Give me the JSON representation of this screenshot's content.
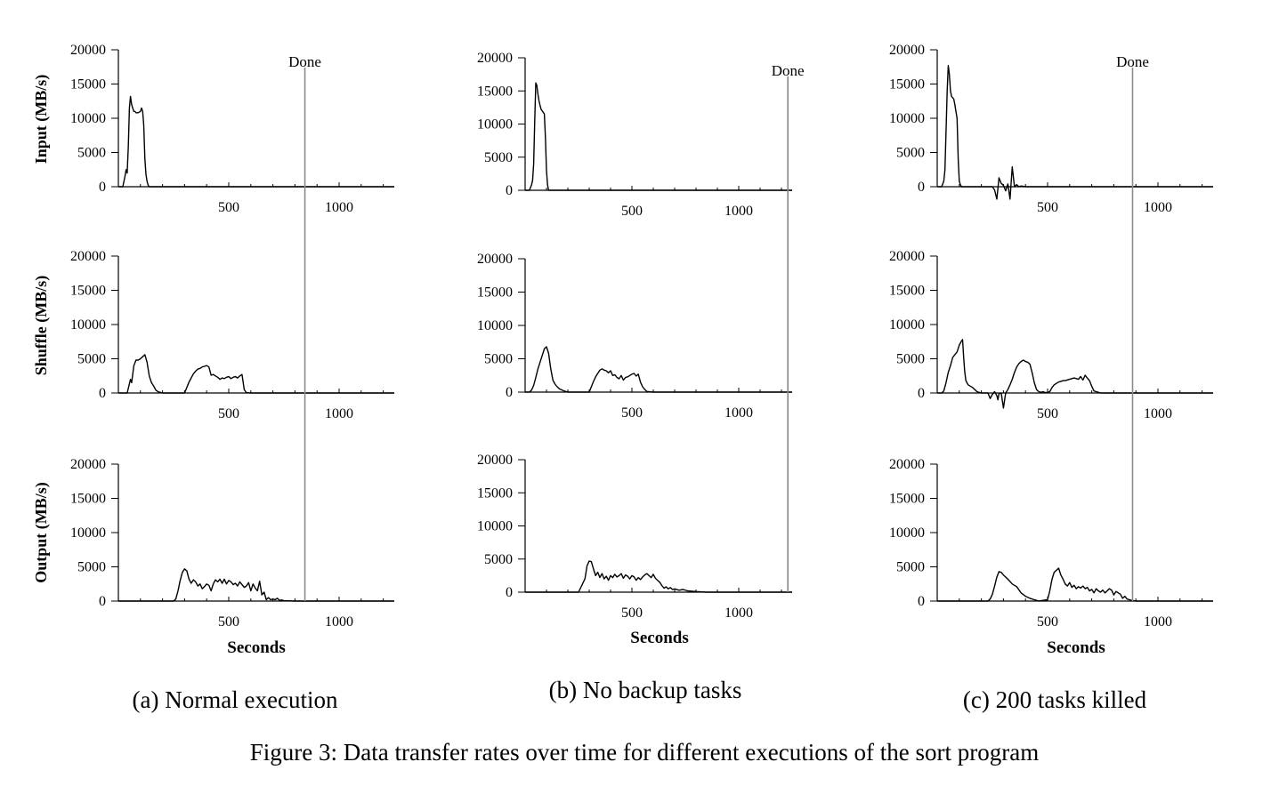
{
  "figure": {
    "caption": "Figure 3: Data transfer rates over time for different executions of the sort program"
  },
  "row_labels": [
    "Input (MB/s)",
    "Shuffle (MB/s)",
    "Output (MB/s)"
  ],
  "chart_data": [
    {
      "type": "line",
      "panel": "(a) Normal execution",
      "xlabel": "Seconds",
      "xlim": [
        0,
        1250
      ],
      "ylim": [
        0,
        20000
      ],
      "xticks": [
        500,
        1000
      ],
      "yticks": [
        0,
        5000,
        10000,
        15000,
        20000
      ],
      "done_label": "Done",
      "done_x": 845,
      "grid": false,
      "series": [
        {
          "row": "Input (MB/s)",
          "x": [
            0,
            20,
            30,
            35,
            40,
            45,
            50,
            55,
            60,
            65,
            70,
            75,
            80,
            90,
            100,
            105,
            110,
            115,
            120,
            125,
            130,
            135,
            140,
            150,
            160,
            170,
            200,
            300,
            500,
            1000,
            1250
          ],
          "y": [
            0,
            0,
            1500,
            2500,
            2000,
            6000,
            11500,
            13200,
            12000,
            11500,
            11000,
            11000,
            10800,
            10800,
            11000,
            11500,
            11000,
            9000,
            4000,
            1800,
            800,
            200,
            0,
            0,
            0,
            0,
            0,
            0,
            0,
            0,
            0
          ]
        },
        {
          "row": "Shuffle (MB/s)",
          "x": [
            0,
            40,
            55,
            60,
            70,
            80,
            90,
            100,
            110,
            120,
            130,
            140,
            150,
            160,
            170,
            180,
            200,
            260,
            300,
            310,
            320,
            330,
            340,
            350,
            360,
            370,
            380,
            390,
            400,
            410,
            420,
            430,
            440,
            450,
            460,
            470,
            480,
            490,
            500,
            510,
            520,
            530,
            540,
            550,
            560,
            570,
            580,
            600,
            800,
            1000,
            1250
          ],
          "y": [
            0,
            0,
            2000,
            1500,
            4000,
            4800,
            4800,
            5000,
            5300,
            5600,
            4500,
            2500,
            1500,
            1000,
            400,
            200,
            0,
            0,
            0,
            800,
            1600,
            2200,
            2800,
            3200,
            3500,
            3600,
            3800,
            3900,
            4000,
            3800,
            2600,
            2700,
            2500,
            2300,
            2000,
            2200,
            2100,
            2300,
            2400,
            2100,
            2300,
            2400,
            2200,
            2500,
            2700,
            500,
            50,
            0,
            0,
            0,
            0
          ]
        },
        {
          "row": "Output (MB/s)",
          "x": [
            0,
            200,
            250,
            260,
            270,
            280,
            290,
            300,
            310,
            320,
            330,
            340,
            350,
            360,
            370,
            380,
            390,
            400,
            410,
            420,
            430,
            440,
            450,
            460,
            470,
            480,
            490,
            500,
            510,
            520,
            530,
            540,
            550,
            560,
            570,
            580,
            590,
            600,
            610,
            620,
            630,
            640,
            650,
            660,
            670,
            680,
            690,
            700,
            710,
            720,
            730,
            740,
            750,
            800,
            1000,
            1250
          ],
          "y": [
            0,
            0,
            0,
            300,
            1500,
            3000,
            4200,
            4700,
            4400,
            3200,
            2600,
            3100,
            2800,
            2200,
            2500,
            1800,
            2100,
            2500,
            2300,
            1500,
            2500,
            3100,
            2800,
            3200,
            2600,
            3200,
            2500,
            3000,
            2800,
            2400,
            2600,
            2200,
            2800,
            2400,
            2000,
            2200,
            2700,
            1500,
            2500,
            1900,
            1500,
            2900,
            900,
            1300,
            200,
            500,
            200,
            300,
            200,
            400,
            100,
            150,
            50,
            0,
            0,
            0
          ]
        }
      ]
    },
    {
      "type": "line",
      "panel": "(b) No backup tasks",
      "xlabel": "Seconds",
      "xlim": [
        0,
        1250
      ],
      "ylim": [
        0,
        20000
      ],
      "xticks": [
        500,
        1000
      ],
      "yticks": [
        0,
        5000,
        10000,
        15000,
        20000
      ],
      "done_label": "Done",
      "done_x": 1230,
      "grid": false,
      "series": [
        {
          "row": "Input (MB/s)",
          "x": [
            0,
            20,
            30,
            35,
            40,
            45,
            50,
            55,
            60,
            65,
            70,
            75,
            80,
            90,
            95,
            100,
            105,
            110,
            120,
            150,
            500,
            1000,
            1250
          ],
          "y": [
            0,
            0,
            800,
            1500,
            4000,
            10500,
            16200,
            15800,
            14500,
            13500,
            12800,
            12200,
            12000,
            11500,
            8000,
            3000,
            800,
            0,
            0,
            0,
            0,
            0,
            0
          ]
        },
        {
          "row": "Shuffle (MB/s)",
          "x": [
            0,
            20,
            30,
            40,
            50,
            60,
            70,
            80,
            90,
            100,
            110,
            120,
            130,
            140,
            150,
            160,
            180,
            200,
            250,
            300,
            310,
            320,
            330,
            340,
            350,
            360,
            370,
            380,
            390,
            400,
            410,
            420,
            430,
            440,
            450,
            460,
            470,
            480,
            490,
            500,
            510,
            520,
            530,
            540,
            550,
            560,
            570,
            600,
            700,
            800,
            1000,
            1250
          ],
          "y": [
            0,
            0,
            300,
            1000,
            2200,
            3500,
            4500,
            5500,
            6500,
            6800,
            5800,
            3500,
            1800,
            1200,
            800,
            500,
            200,
            0,
            0,
            0,
            800,
            1600,
            2300,
            2800,
            3300,
            3500,
            3300,
            3200,
            2900,
            3200,
            2500,
            2600,
            2200,
            2000,
            2500,
            1800,
            2200,
            2300,
            2500,
            2700,
            2800,
            2400,
            2700,
            1500,
            800,
            400,
            100,
            0,
            0,
            0,
            0,
            0
          ]
        },
        {
          "row": "Output (MB/s)",
          "x": [
            0,
            250,
            280,
            290,
            300,
            310,
            320,
            330,
            340,
            350,
            360,
            370,
            380,
            390,
            400,
            410,
            420,
            430,
            440,
            450,
            460,
            470,
            480,
            490,
            500,
            510,
            520,
            530,
            540,
            550,
            560,
            570,
            580,
            590,
            600,
            610,
            620,
            630,
            640,
            650,
            660,
            670,
            680,
            690,
            700,
            720,
            740,
            760,
            780,
            800,
            850,
            1000,
            1250
          ],
          "y": [
            0,
            0,
            2000,
            4000,
            4700,
            4600,
            3500,
            2500,
            3000,
            2200,
            2800,
            2000,
            2400,
            1800,
            2500,
            2200,
            2700,
            2300,
            2500,
            2800,
            2100,
            2600,
            2400,
            2000,
            2500,
            2300,
            1800,
            2200,
            1900,
            2300,
            2600,
            2800,
            2500,
            2200,
            2700,
            2100,
            1800,
            1500,
            1000,
            600,
            800,
            500,
            700,
            400,
            500,
            300,
            400,
            200,
            150,
            100,
            0,
            0,
            0
          ]
        }
      ]
    },
    {
      "type": "line",
      "panel": "(c) 200 tasks killed",
      "xlabel": "Seconds",
      "xlim": [
        0,
        1250
      ],
      "ylim": [
        0,
        20000
      ],
      "xticks": [
        500,
        1000
      ],
      "yticks": [
        0,
        5000,
        10000,
        15000,
        20000
      ],
      "done_label": "Done",
      "done_x": 885,
      "grid": false,
      "series": [
        {
          "row": "Input (MB/s)",
          "x": [
            0,
            20,
            30,
            35,
            40,
            45,
            50,
            55,
            60,
            65,
            70,
            75,
            80,
            90,
            95,
            100,
            105,
            110,
            115,
            120,
            200,
            250,
            260,
            270,
            280,
            290,
            300,
            310,
            320,
            330,
            340,
            350,
            360,
            370,
            380,
            400,
            500,
            1000,
            1250
          ],
          "y": [
            0,
            0,
            800,
            2500,
            8000,
            14000,
            17700,
            16500,
            14000,
            13200,
            13000,
            12800,
            12000,
            10000,
            4000,
            800,
            300,
            0,
            0,
            0,
            0,
            0,
            -500,
            -1800,
            1300,
            500,
            200,
            -600,
            400,
            -1800,
            2900,
            0,
            300,
            0,
            100,
            0,
            0,
            0,
            0
          ]
        },
        {
          "row": "Shuffle (MB/s)",
          "x": [
            0,
            20,
            30,
            40,
            50,
            60,
            70,
            80,
            90,
            100,
            110,
            115,
            120,
            125,
            130,
            140,
            150,
            160,
            170,
            180,
            200,
            220,
            230,
            240,
            250,
            260,
            270,
            275,
            280,
            290,
            300,
            310,
            320,
            330,
            340,
            350,
            360,
            370,
            380,
            390,
            400,
            410,
            420,
            430,
            440,
            450,
            460,
            470,
            480,
            490,
            500,
            510,
            520,
            530,
            540,
            550,
            560,
            570,
            580,
            600,
            620,
            640,
            650,
            660,
            670,
            680,
            690,
            700,
            710,
            720,
            730,
            740,
            750,
            800,
            1000,
            1250
          ],
          "y": [
            0,
            0,
            300,
            1500,
            3000,
            4000,
            5200,
            5600,
            6000,
            7000,
            7600,
            7800,
            5000,
            3000,
            1800,
            1200,
            1000,
            800,
            500,
            200,
            0,
            0,
            0,
            -800,
            -200,
            200,
            -400,
            -1000,
            -100,
            0,
            -2200,
            0,
            500,
            1200,
            2000,
            3000,
            3800,
            4300,
            4600,
            4800,
            4600,
            4500,
            4200,
            3000,
            1500,
            500,
            200,
            100,
            200,
            50,
            100,
            200,
            800,
            1200,
            1400,
            1600,
            1700,
            1800,
            1800,
            2000,
            2200,
            2000,
            2400,
            1900,
            2600,
            2200,
            1800,
            1000,
            300,
            200,
            100,
            0,
            0,
            0,
            0,
            0
          ]
        },
        {
          "row": "Output (MB/s)",
          "x": [
            0,
            220,
            230,
            240,
            250,
            260,
            270,
            280,
            290,
            300,
            320,
            340,
            360,
            380,
            400,
            420,
            440,
            450,
            460,
            480,
            500,
            510,
            520,
            530,
            540,
            550,
            560,
            570,
            580,
            590,
            600,
            610,
            620,
            630,
            640,
            650,
            660,
            670,
            680,
            690,
            700,
            710,
            720,
            730,
            740,
            750,
            760,
            770,
            780,
            790,
            800,
            810,
            820,
            830,
            840,
            850,
            860,
            870,
            880,
            900,
            1000,
            1250
          ],
          "y": [
            0,
            0,
            0,
            300,
            1000,
            2200,
            3500,
            4300,
            4200,
            3800,
            3200,
            2500,
            2100,
            1200,
            700,
            400,
            200,
            100,
            0,
            100,
            200,
            1500,
            3200,
            4200,
            4500,
            4800,
            3800,
            3200,
            2500,
            2200,
            2700,
            2000,
            2300,
            1800,
            2100,
            1900,
            2200,
            1800,
            2000,
            1500,
            1700,
            1200,
            1800,
            1500,
            1300,
            1600,
            1200,
            1500,
            1800,
            1600,
            900,
            1400,
            1200,
            1000,
            400,
            700,
            300,
            200,
            100,
            0,
            0,
            0
          ]
        }
      ]
    }
  ]
}
